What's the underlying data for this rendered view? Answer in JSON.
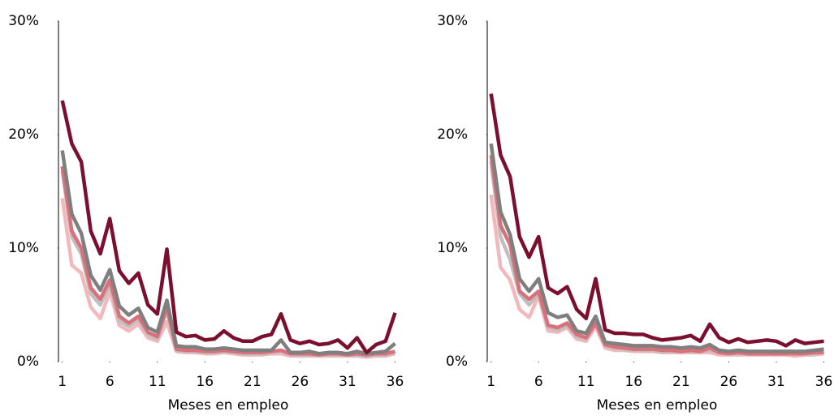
{
  "chart_data": [
    {
      "type": "line",
      "x_label": "Meses en empleo",
      "x": [
        1,
        2,
        3,
        4,
        5,
        6,
        7,
        8,
        9,
        10,
        11,
        12,
        13,
        14,
        15,
        16,
        17,
        18,
        19,
        20,
        21,
        22,
        23,
        24,
        25,
        26,
        27,
        28,
        29,
        30,
        31,
        32,
        33,
        34,
        35,
        36
      ],
      "xlim": [
        0.6,
        36.3
      ],
      "xticks": [
        1,
        6,
        11,
        16,
        21,
        26,
        31,
        36
      ],
      "ylim": [
        0,
        30
      ],
      "yticks": [
        {
          "value": 0,
          "label": "0%"
        },
        {
          "value": 10,
          "label": "10%"
        },
        {
          "value": 20,
          "label": "20%"
        },
        {
          "value": 30,
          "label": "30%"
        }
      ],
      "series": [
        {
          "color": "#f2b8bc",
          "values": [
            14.4,
            8.5,
            7.8,
            4.8,
            3.8,
            6.2,
            3.2,
            2.7,
            3.3,
            2.1,
            1.8,
            3.5,
            0.9,
            0.8,
            0.8,
            0.7,
            0.7,
            0.8,
            0.7,
            0.6,
            0.6,
            0.6,
            0.7,
            0.7,
            0.5,
            0.5,
            0.5,
            0.5,
            0.5,
            0.5,
            0.5,
            0.5,
            0.4,
            0.5,
            0.5,
            0.7
          ]
        },
        {
          "color": "#bfbfbf",
          "values": [
            16.8,
            11,
            9.5,
            6,
            5,
            6.8,
            3.6,
            3.1,
            3.7,
            2.4,
            2,
            4.5,
            1,
            0.9,
            0.9,
            0.8,
            0.8,
            0.9,
            0.8,
            0.7,
            0.7,
            0.7,
            0.8,
            0.9,
            0.6,
            0.6,
            0.6,
            0.6,
            0.6,
            0.6,
            0.6,
            0.6,
            0.5,
            0.6,
            0.6,
            0.8
          ]
        },
        {
          "color": "#d9707a",
          "values": [
            17.2,
            11.5,
            10,
            6.5,
            5.5,
            7.2,
            4,
            3.4,
            4,
            2.6,
            2.2,
            4.8,
            1.1,
            1,
            1,
            0.9,
            0.9,
            1,
            0.9,
            0.8,
            0.8,
            0.8,
            0.9,
            1,
            0.7,
            0.7,
            0.7,
            0.6,
            0.7,
            0.7,
            0.6,
            0.7,
            0.6,
            0.7,
            0.7,
            0.9
          ]
        },
        {
          "color": "#7f7f7f",
          "values": [
            18.6,
            13,
            11.3,
            7.6,
            6.3,
            8.1,
            4.9,
            4.1,
            4.7,
            3,
            2.6,
            5.4,
            1.4,
            1.3,
            1.3,
            1.1,
            1.1,
            1.2,
            1.1,
            1,
            1,
            1,
            1,
            1.9,
            0.8,
            0.8,
            0.9,
            0.7,
            0.8,
            0.8,
            0.7,
            0.9,
            0.7,
            0.8,
            0.9,
            1.6
          ]
        },
        {
          "color": "#7b0f2e",
          "values": [
            23,
            19.2,
            17.6,
            11.5,
            9.5,
            12.6,
            8,
            6.9,
            7.8,
            5,
            4.2,
            9.9,
            2.6,
            2.2,
            2.3,
            1.9,
            2,
            2.7,
            2.1,
            1.8,
            1.8,
            2.2,
            2.4,
            4.2,
            1.9,
            1.6,
            1.8,
            1.5,
            1.6,
            1.9,
            1.2,
            2.1,
            0.8,
            1.5,
            1.8,
            4.3
          ]
        }
      ]
    },
    {
      "type": "line",
      "x_label": "Meses en empleo",
      "x": [
        1,
        2,
        3,
        4,
        5,
        6,
        7,
        8,
        9,
        10,
        11,
        12,
        13,
        14,
        15,
        16,
        17,
        18,
        19,
        20,
        21,
        22,
        23,
        24,
        25,
        26,
        27,
        28,
        29,
        30,
        31,
        32,
        33,
        34,
        35,
        36
      ],
      "xlim": [
        0.6,
        36.3
      ],
      "xticks": [
        1,
        6,
        11,
        16,
        21,
        26,
        31,
        36
      ],
      "ylim": [
        0,
        30
      ],
      "yticks": [
        {
          "value": 0,
          "label": "0%"
        },
        {
          "value": 10,
          "label": "10%"
        },
        {
          "value": 20,
          "label": "20%"
        },
        {
          "value": 30,
          "label": "30%"
        }
      ],
      "series": [
        {
          "color": "#f2b8bc",
          "values": [
            14.7,
            8.3,
            7.2,
            4.6,
            3.9,
            5.8,
            2.7,
            2.6,
            3,
            2,
            1.8,
            3.1,
            1.2,
            1,
            1,
            0.9,
            0.9,
            0.9,
            0.8,
            0.8,
            0.8,
            0.8,
            0.8,
            0.8,
            0.6,
            0.6,
            0.6,
            0.6,
            0.6,
            0.6,
            0.6,
            0.6,
            0.5,
            0.6,
            0.6,
            0.7
          ]
        },
        {
          "color": "#bfbfbf",
          "values": [
            17.6,
            11,
            9,
            6,
            5,
            6,
            3,
            2.8,
            3.2,
            2.2,
            2,
            3.5,
            1.4,
            1.2,
            1.1,
            1,
            1,
            1,
            0.9,
            0.9,
            0.9,
            0.9,
            0.9,
            1,
            0.8,
            0.7,
            0.7,
            0.7,
            0.7,
            0.7,
            0.7,
            0.7,
            0.7,
            0.7,
            0.7,
            0.8
          ]
        },
        {
          "color": "#d9707a",
          "values": [
            18.2,
            12,
            10.3,
            6.2,
            5.5,
            6.2,
            3.2,
            3,
            3.4,
            2.4,
            2.1,
            3.4,
            1.5,
            1.3,
            1.2,
            1.1,
            1.1,
            1.1,
            1,
            1,
            0.9,
            1,
            0.9,
            1.2,
            0.8,
            0.7,
            0.8,
            0.7,
            0.7,
            0.7,
            0.7,
            0.7,
            0.7,
            0.7,
            0.8,
            0.8
          ]
        },
        {
          "color": "#7f7f7f",
          "values": [
            19.2,
            13.2,
            11.2,
            7.3,
            6.2,
            7.3,
            4.3,
            3.9,
            4.1,
            2.7,
            2.5,
            4,
            1.7,
            1.6,
            1.5,
            1.4,
            1.4,
            1.4,
            1.3,
            1.3,
            1.2,
            1.3,
            1.2,
            1.5,
            1,
            0.9,
            1,
            0.9,
            0.9,
            0.9,
            0.9,
            0.9,
            0.9,
            0.9,
            1,
            1.1
          ]
        },
        {
          "color": "#7b0f2e",
          "values": [
            23.6,
            18.2,
            16.3,
            11,
            9.2,
            11,
            6.5,
            6,
            6.6,
            4.6,
            3.8,
            7.3,
            2.8,
            2.5,
            2.5,
            2.4,
            2.4,
            2.1,
            1.9,
            2,
            2.1,
            2.3,
            1.8,
            3.3,
            2.1,
            1.7,
            2,
            1.7,
            1.8,
            1.9,
            1.8,
            1.4,
            1.9,
            1.6,
            1.7,
            1.8
          ]
        }
      ]
    }
  ]
}
